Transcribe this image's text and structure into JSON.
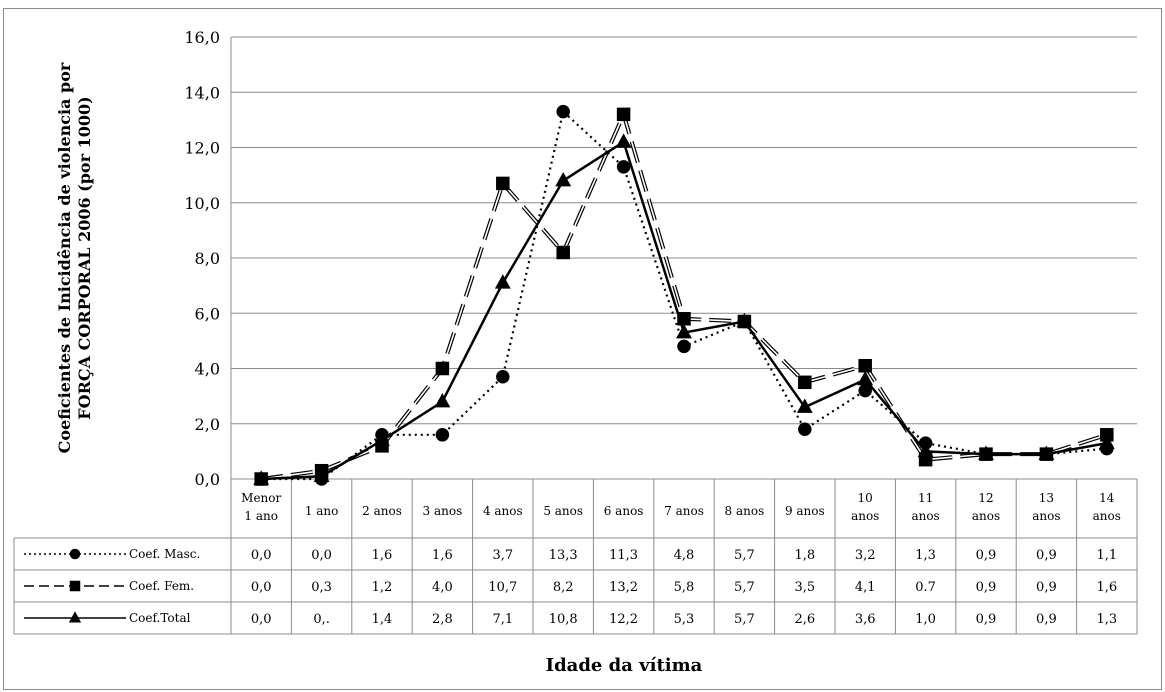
{
  "chart_data": {
    "type": "line",
    "title": "",
    "ylabel_line1": "Coeficientes de Inicidência de violencia por",
    "ylabel_line2": "FORÇA CORPORAL 2006 (por 1000)",
    "xlabel": "Idade da vítima",
    "ylim": [
      0,
      16
    ],
    "yticks": [
      "0,0",
      "2,0",
      "4,0",
      "6,0",
      "8,0",
      "10,0",
      "12,0",
      "14,0",
      "16,0"
    ],
    "grid": true,
    "legend_placement": "data-table-left",
    "categories": [
      [
        "Menor",
        "1 ano"
      ],
      [
        "1 ano"
      ],
      [
        "2 anos"
      ],
      [
        "3 anos"
      ],
      [
        "4 anos"
      ],
      [
        "5 anos"
      ],
      [
        "6 anos"
      ],
      [
        "7 anos"
      ],
      [
        "8 anos"
      ],
      [
        "9 anos"
      ],
      [
        "10",
        "anos"
      ],
      [
        "11",
        "anos"
      ],
      [
        "12",
        "anos"
      ],
      [
        "13",
        "anos"
      ],
      [
        "14",
        "anos"
      ]
    ],
    "series": [
      {
        "name": "Coef. Masc.",
        "marker": "circle",
        "dash": "dotted",
        "values": [
          0.0,
          0.0,
          1.6,
          1.6,
          3.7,
          13.3,
          11.3,
          4.8,
          5.7,
          1.8,
          3.2,
          1.3,
          0.9,
          0.9,
          1.1
        ],
        "labels": [
          "0,0",
          "0,0",
          "1,6",
          "1,6",
          "3,7",
          "13,3",
          "11,3",
          "4,8",
          "5,7",
          "1,8",
          "3,2",
          "1,3",
          "0,9",
          "0,9",
          "1,1"
        ]
      },
      {
        "name": "Coef. Fem.",
        "marker": "square",
        "dash": "long-dash",
        "values": [
          0.0,
          0.3,
          1.2,
          4.0,
          10.7,
          8.2,
          13.2,
          5.8,
          5.7,
          3.5,
          4.1,
          0.7,
          0.9,
          0.9,
          1.6
        ],
        "labels": [
          "0,0",
          "0,3",
          "1,2",
          "4,0",
          "10,7",
          "8,2",
          "13,2",
          "5,8",
          "5,7",
          "3,5",
          "4,1",
          "0.7",
          "0,9",
          "0,9",
          "1,6"
        ]
      },
      {
        "name": "Coef.Total",
        "marker": "triangle",
        "dash": "solid",
        "values": [
          0.0,
          0.1,
          1.4,
          2.8,
          7.1,
          10.8,
          12.2,
          5.3,
          5.7,
          2.6,
          3.6,
          1.0,
          0.9,
          0.9,
          1.3
        ],
        "labels": [
          "0,0",
          "0,.",
          "1,4",
          "2,8",
          "7,1",
          "10,8",
          "12,2",
          "5,3",
          "5,7",
          "2,6",
          "3,6",
          "1,0",
          "0,9",
          "0,9",
          "1,3"
        ]
      }
    ]
  }
}
